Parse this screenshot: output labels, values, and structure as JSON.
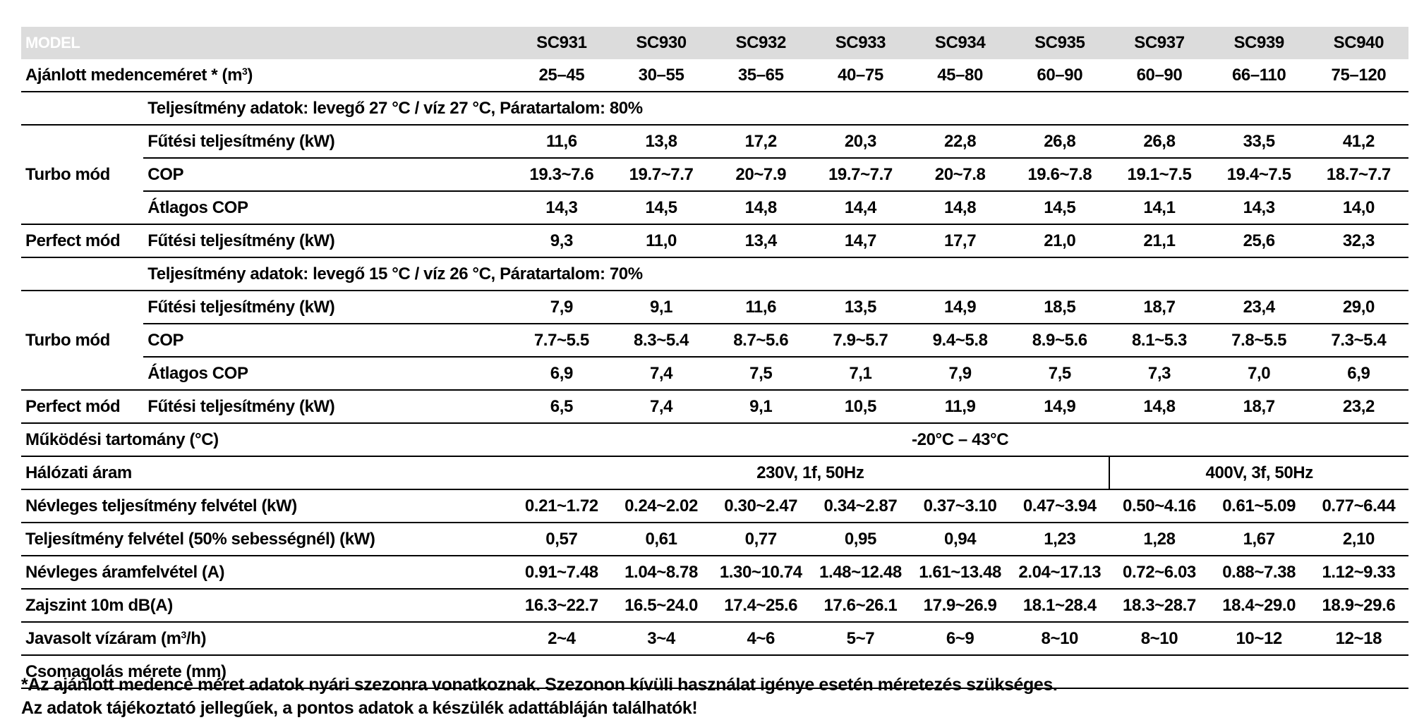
{
  "header": {
    "model_label": "MODEL",
    "models": [
      "SC931",
      "SC930",
      "SC932",
      "SC933",
      "SC934",
      "SC935",
      "SC937",
      "SC939",
      "SC940"
    ]
  },
  "pool": {
    "label_pre": "Ajánlott medenceméret * (m",
    "label_sup": "3",
    "label_post": ")",
    "values": [
      "25–45",
      "30–55",
      "35–65",
      "40–75",
      "45–80",
      "60–90",
      "60–90",
      "66–110",
      "75–120"
    ]
  },
  "cond1": {
    "title": "Teljesítmény adatok: levegő 27 °C / víz 27 °C, Páratartalom: 80%",
    "turbo_label": "Turbo mód",
    "heat_label": "Fűtési teljesítmény (kW)",
    "heat": [
      "11,6",
      "13,8",
      "17,2",
      "20,3",
      "22,8",
      "26,8",
      "26,8",
      "33,5",
      "41,2"
    ],
    "cop_label": "COP",
    "cop": [
      "19.3~7.6",
      "19.7~7.7",
      "20~7.9",
      "19.7~7.7",
      "20~7.8",
      "19.6~7.8",
      "19.1~7.5",
      "19.4~7.5",
      "18.7~7.7"
    ],
    "avg_label": "Átlagos COP",
    "avg": [
      "14,3",
      "14,5",
      "14,8",
      "14,4",
      "14,8",
      "14,5",
      "14,1",
      "14,3",
      "14,0"
    ],
    "perfect_label": "Perfect mód",
    "perfect_heat_label": "Fűtési teljesítmény (kW)",
    "perfect": [
      "9,3",
      "11,0",
      "13,4",
      "14,7",
      "17,7",
      "21,0",
      "21,1",
      "25,6",
      "32,3"
    ]
  },
  "cond2": {
    "title": "Teljesítmény adatok: levegő 15 °C / víz 26 °C, Páratartalom: 70%",
    "turbo_label": "Turbo mód",
    "heat_label": "Fűtési teljesítmény (kW)",
    "heat": [
      "7,9",
      "9,1",
      "11,6",
      "13,5",
      "14,9",
      "18,5",
      "18,7",
      "23,4",
      "29,0"
    ],
    "cop_label": "COP",
    "cop": [
      "7.7~5.5",
      "8.3~5.4",
      "8.7~5.6",
      "7.9~5.7",
      "9.4~5.8",
      "8.9~5.6",
      "8.1~5.3",
      "7.8~5.5",
      "7.3~5.4"
    ],
    "avg_label": "Átlagos COP",
    "avg": [
      "6,9",
      "7,4",
      "7,5",
      "7,1",
      "7,9",
      "7,5",
      "7,3",
      "7,0",
      "6,9"
    ],
    "perfect_label": "Perfect mód",
    "perfect_heat_label": "Fűtési teljesítmény (kW)",
    "perfect": [
      "6,5",
      "7,4",
      "9,1",
      "10,5",
      "11,9",
      "14,9",
      "14,8",
      "18,7",
      "23,2"
    ]
  },
  "operating": {
    "label": "Működési tartomány (°C)",
    "value": "-20°C – 43°C"
  },
  "mains": {
    "label": "Hálózati áram",
    "single_phase": "230V, 1f, 50Hz",
    "three_phase": "400V, 3f, 50Hz"
  },
  "rated_input": {
    "label": "Névleges teljesítmény felvétel (kW)",
    "values": [
      "0.21~1.72",
      "0.24~2.02",
      "0.30~2.47",
      "0.34~2.87",
      "0.37~3.10",
      "0.47~3.94",
      "0.50~4.16",
      "0.61~5.09",
      "0.77~6.44"
    ]
  },
  "input50": {
    "label": "Teljesítmény felvétel (50% sebességnél) (kW)",
    "values": [
      "0,57",
      "0,61",
      "0,77",
      "0,95",
      "0,94",
      "1,23",
      "1,28",
      "1,67",
      "2,10"
    ]
  },
  "current": {
    "label": "Névleges áramfelvétel (A)",
    "values": [
      "0.91~7.48",
      "1.04~8.78",
      "1.30~10.74",
      "1.48~12.48",
      "1.61~13.48",
      "2.04~17.13",
      "0.72~6.03",
      "0.88~7.38",
      "1.12~9.33"
    ]
  },
  "noise": {
    "label": "Zajszint 10m dB(A)",
    "values": [
      "16.3~22.7",
      "16.5~24.0",
      "17.4~25.6",
      "17.6~26.1",
      "17.9~26.9",
      "18.1~28.4",
      "18.3~28.7",
      "18.4~29.0",
      "18.9~29.6"
    ]
  },
  "waterflow": {
    "label_pre": "Javasolt vízáram (m",
    "label_sup": "3",
    "label_post": "/h)",
    "values": [
      "2~4",
      "3~4",
      "4~6",
      "5~7",
      "6~9",
      "8~10",
      "8~10",
      "10~12",
      "12~18"
    ]
  },
  "packaging": {
    "label": "Csomagolás mérete (mm)"
  },
  "footnotes": [
    "*Az ajánlott medence méret adatok nyári szezonra vonatkoznak. Szezonon kívüli használat igénye esetén méretezés szükséges.",
    "Az adatok tájékoztató jellegűek, a pontos adatok a készülék adattábláján találhatók!"
  ]
}
